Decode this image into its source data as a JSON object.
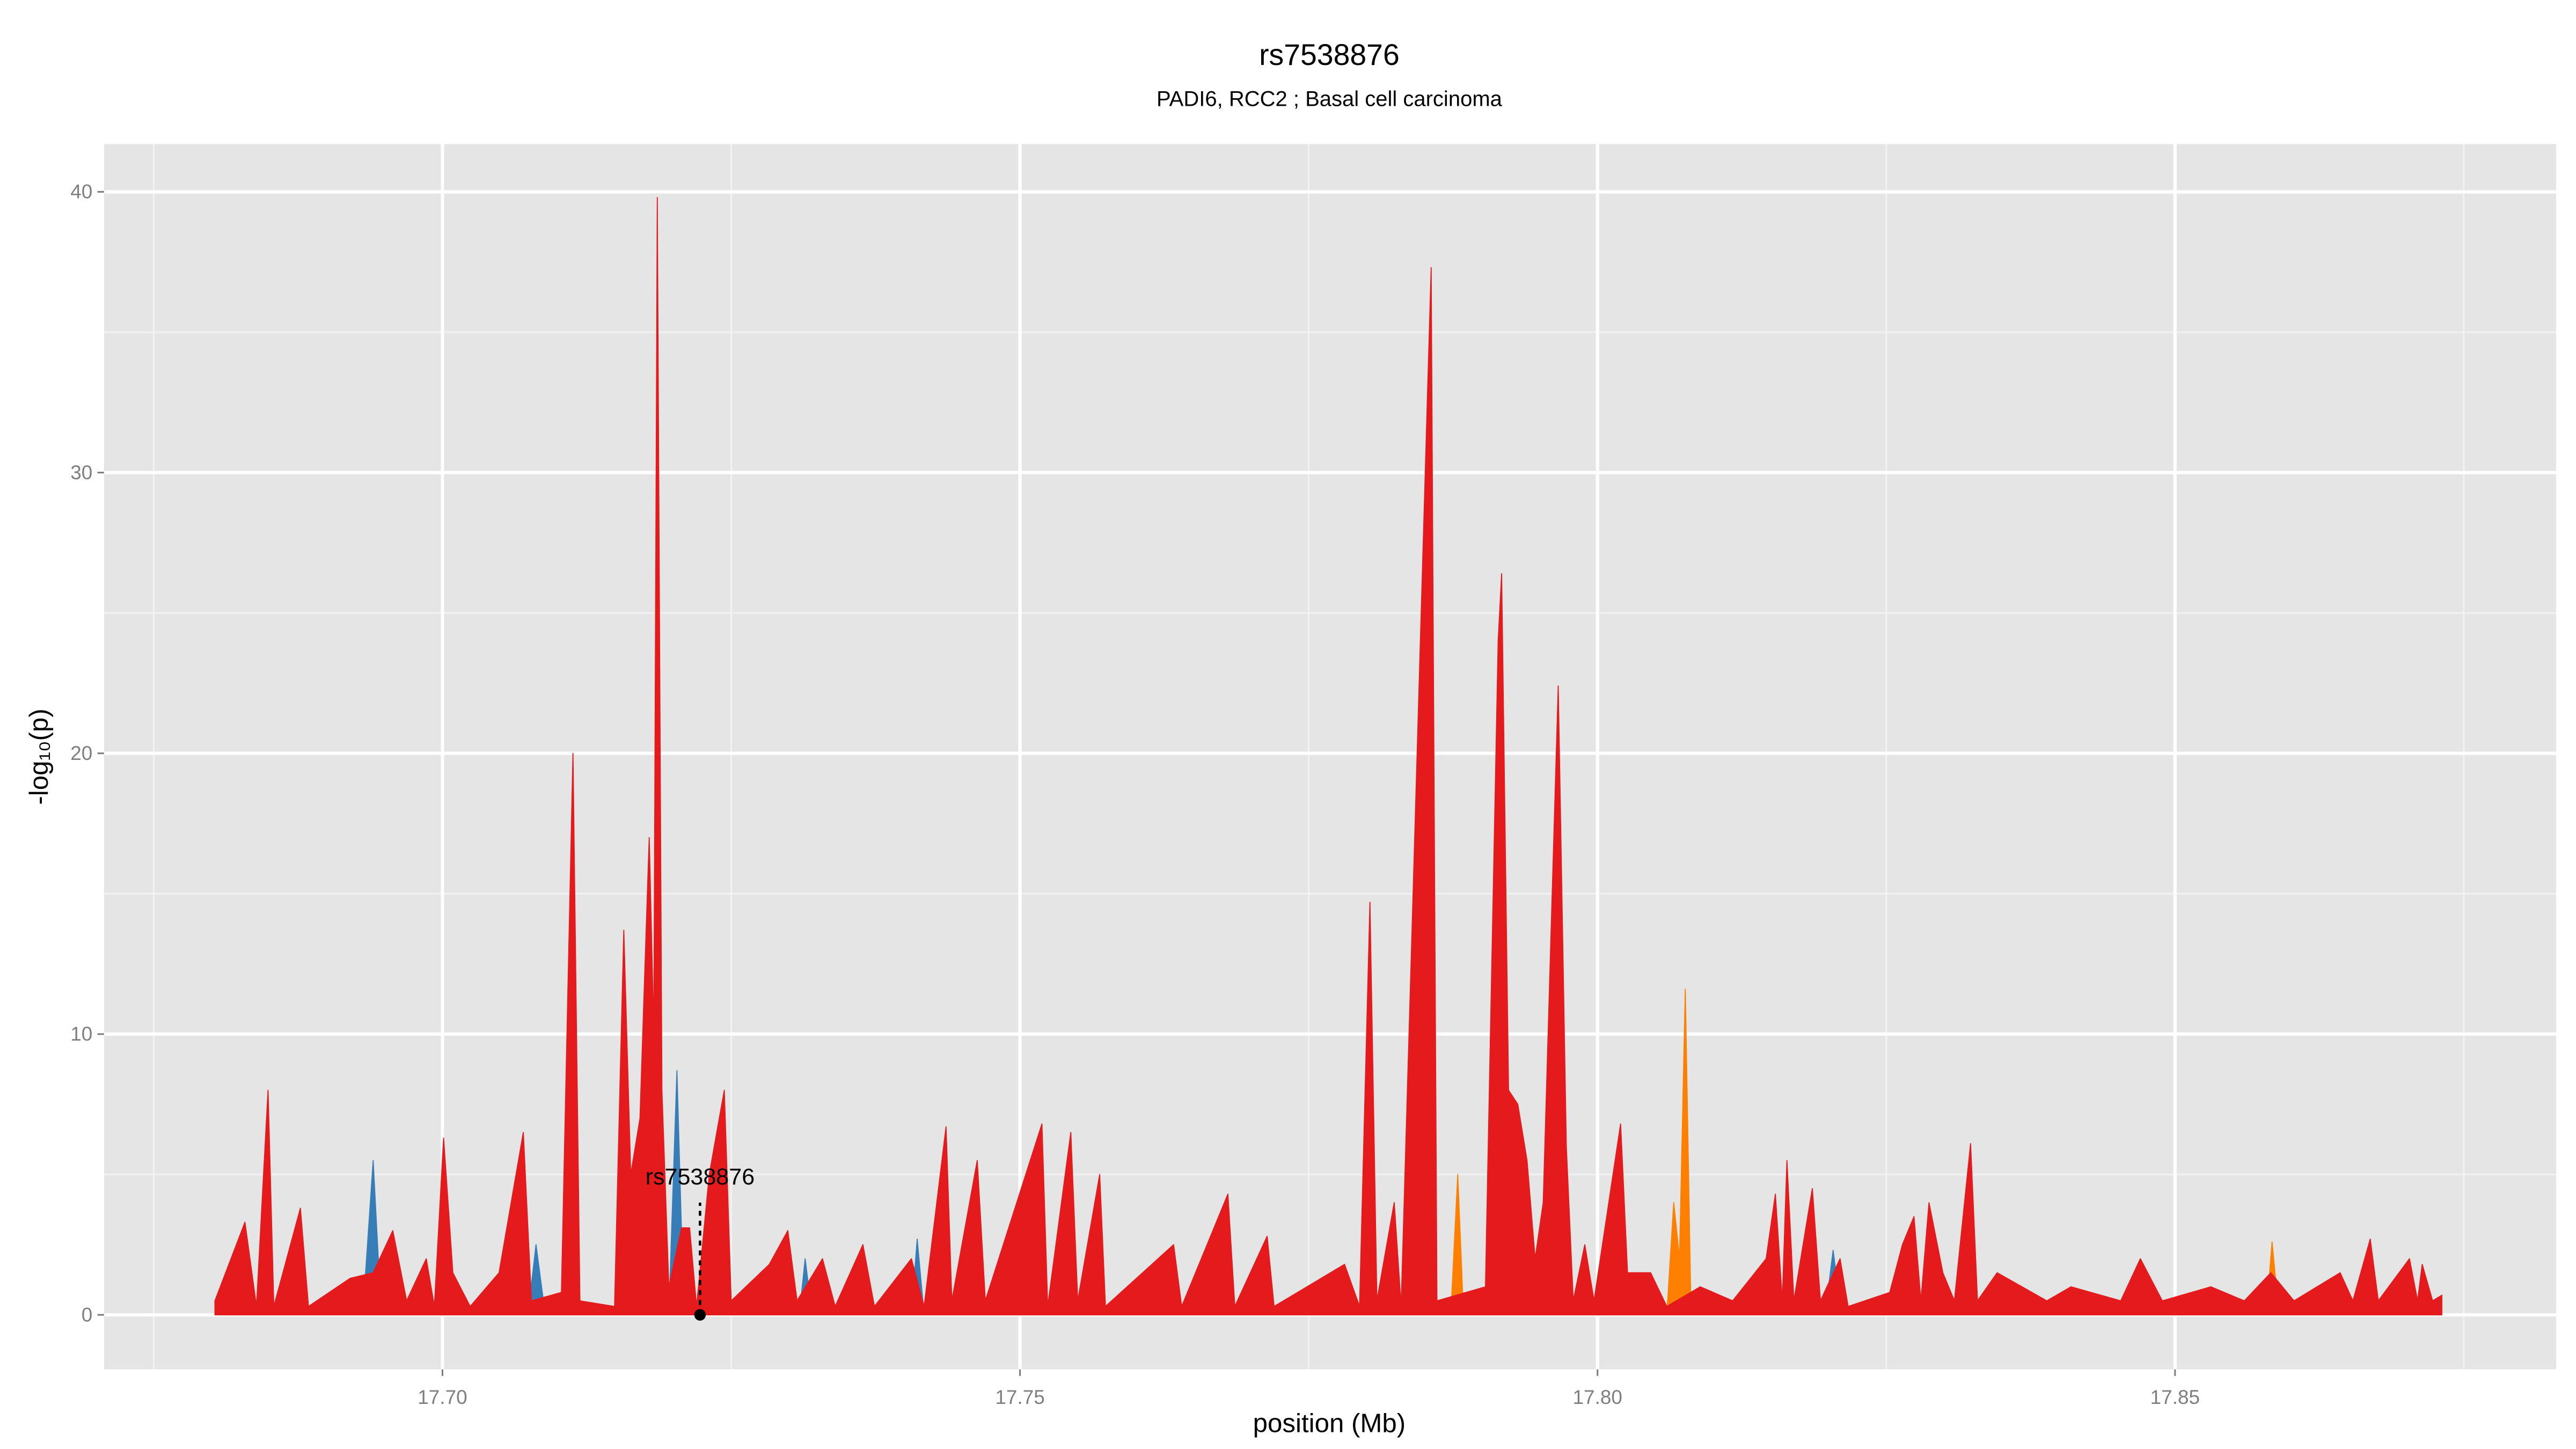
{
  "chart_data": {
    "type": "area",
    "title": "rs7538876",
    "subtitle": "PADI6, RCC2 ; Basal cell carcinoma",
    "x_label": "position (Mb)",
    "y_label": "-log₁₀(p)",
    "xlim": [
      17.6707,
      17.883
    ],
    "ylim": [
      -1.94,
      41.7
    ],
    "xticks": [
      {
        "value": 17.7,
        "label": "17.70"
      },
      17.75,
      {
        "value": 17.8,
        "label": "17.80"
      },
      17.85
    ],
    "yticks": [
      0,
      10,
      20,
      30,
      40
    ],
    "x_minor_grid": [
      17.675,
      17.725,
      17.775,
      17.825,
      17.875
    ],
    "y_minor_grid": [
      5,
      15,
      25,
      35
    ],
    "grid": true,
    "background": "#e5e5e5",
    "series": [
      {
        "color": "#ff7f00",
        "x": [
          17.7799,
          17.7803,
          17.7809,
          null,
          17.7873,
          17.7879,
          17.7884,
          null,
          17.806,
          17.8066,
          17.8071,
          17.8076,
          17.8081,
          null,
          17.8579,
          17.8584,
          17.859
        ],
        "values": [
          0,
          14,
          0,
          null,
          0,
          5,
          0,
          null,
          0,
          4,
          2,
          11.6,
          0,
          null,
          0,
          2.6,
          0
        ]
      },
      {
        "color": "#377eb8",
        "x": [
          17.6931,
          17.694,
          17.6947,
          null,
          17.7074,
          17.7081,
          17.7089,
          null,
          17.7196,
          17.7203,
          17.7209,
          null,
          17.7309,
          17.7314,
          17.732,
          null,
          17.7406,
          17.7411,
          17.7417,
          null,
          17.8197,
          17.8204,
          17.8211
        ],
        "values": [
          0,
          5.5,
          0,
          null,
          0,
          2.5,
          0,
          null,
          0,
          8.7,
          0,
          null,
          0,
          2,
          0,
          null,
          0,
          2.7,
          0,
          null,
          0,
          2.3,
          0
        ]
      },
      {
        "color": "#e41a1c",
        "x": [
          17.6803,
          17.6829,
          17.6839,
          17.6849,
          17.6854,
          17.6877,
          17.6884,
          17.692,
          17.694,
          17.6957,
          17.6969,
          17.6986,
          17.6993,
          17.7001,
          17.7009,
          17.7024,
          17.7049,
          17.707,
          17.7077,
          17.7103,
          17.7113,
          17.7119,
          17.7149,
          17.7157,
          17.7163,
          17.7171,
          17.7179,
          17.7183,
          17.7186,
          17.719,
          17.7196,
          17.7207,
          17.7214,
          17.722,
          17.7231,
          17.7244,
          17.725,
          17.7283,
          17.7299,
          17.7307,
          17.7329,
          17.734,
          17.7364,
          17.7374,
          17.7406,
          17.7417,
          17.7436,
          17.7441,
          17.7463,
          17.747,
          17.7519,
          17.7524,
          17.7544,
          17.755,
          17.7569,
          17.7574,
          17.7633,
          17.764,
          17.768,
          17.7686,
          17.7714,
          17.772,
          17.7781,
          17.7794,
          17.7803,
          17.7809,
          17.7824,
          17.783,
          17.7856,
          17.7861,
          17.7903,
          17.7914,
          17.7917,
          17.7923,
          17.7931,
          17.7939,
          17.7946,
          17.7953,
          17.7966,
          17.7973,
          17.7979,
          17.7989,
          17.7997,
          17.802,
          17.8026,
          17.8046,
          17.806,
          17.8089,
          17.8117,
          17.8146,
          17.8154,
          17.816,
          17.8164,
          17.817,
          17.8186,
          17.8193,
          17.821,
          17.8217,
          17.8253,
          17.8264,
          17.8274,
          17.828,
          17.8287,
          17.8299,
          17.8309,
          17.8323,
          17.8329,
          17.8346,
          17.8389,
          17.841,
          17.8453,
          17.847,
          17.8489,
          17.8531,
          17.856,
          17.8583,
          17.8603,
          17.8643,
          17.8654,
          17.8669,
          17.8676,
          17.8703,
          17.871,
          17.8714,
          17.8723,
          17.8731
        ],
        "values": [
          0.5,
          3.3,
          0.3,
          8,
          0.3,
          3.8,
          0.3,
          1.3,
          1.5,
          3,
          0.5,
          2,
          0.3,
          6.3,
          1.5,
          0.3,
          1.5,
          6.5,
          0.5,
          0.8,
          20,
          0.5,
          0.3,
          13.7,
          5,
          7,
          17,
          10,
          39.8,
          8,
          1,
          3.1,
          3.1,
          0.3,
          5,
          8,
          0.5,
          1.8,
          3,
          0.5,
          2,
          0.3,
          2.5,
          0.3,
          2,
          0.3,
          6.7,
          0.5,
          5.5,
          0.5,
          6.8,
          0.3,
          6.5,
          0.5,
          5,
          0.3,
          2.5,
          0.3,
          4.3,
          0.3,
          2.8,
          0.3,
          1.8,
          0.3,
          14.7,
          0.5,
          4,
          0.3,
          37.3,
          0.5,
          1,
          24,
          26.4,
          8,
          7.5,
          5.5,
          2,
          4,
          22.4,
          6,
          0.5,
          2.5,
          0.5,
          6.8,
          1.5,
          1.5,
          0.3,
          1,
          0.5,
          2,
          4.3,
          0.5,
          5.5,
          0.5,
          4.5,
          0.5,
          2,
          0.3,
          0.8,
          2.5,
          3.5,
          0.5,
          4,
          1.5,
          0.5,
          6.1,
          0.5,
          1.5,
          0.5,
          1,
          0.5,
          2,
          0.5,
          1,
          0.5,
          1.5,
          0.5,
          1.5,
          0.5,
          2.7,
          0.5,
          2,
          0.5,
          1.8,
          0.5,
          0.7
        ]
      }
    ],
    "annotation": {
      "text": "rs7538876",
      "x": 17.7223,
      "y": 0
    }
  }
}
